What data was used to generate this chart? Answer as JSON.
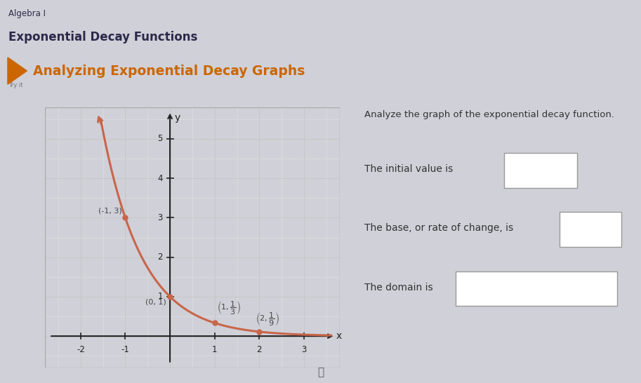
{
  "title_line1": "Algebra I",
  "title_line2": "Exponential Decay Functions",
  "section_title": "Analyzing Exponential Decay Graphs",
  "bg_color_header": "#d0d0d8",
  "bg_color_main": "#e8e8ec",
  "bg_color_section": "#e8e8ec",
  "curve_color": "#c8664a",
  "grid_color": "#c8c8c8",
  "grid_color_half": "#dedede",
  "axis_color": "#222222",
  "point_color": "#c8664a",
  "points": [
    [
      -1,
      3
    ],
    [
      0,
      1
    ],
    [
      1,
      0.3333
    ],
    [
      2,
      0.1111
    ]
  ],
  "xlim": [
    -2.8,
    3.8
  ],
  "ylim": [
    -0.8,
    5.8
  ],
  "xticks": [
    -2,
    -1,
    1,
    2,
    3
  ],
  "yticks": [
    1,
    2,
    3,
    4,
    5
  ],
  "analyze_text": "Analyze the graph of the exponential decay function.",
  "q1_text": "The initial value is",
  "q2_text": "The base, or rate of change, is",
  "q3_text": "The domain is",
  "title_color": "#2a2a4a",
  "section_color": "#cc6600",
  "graph_bg": "#ffffff",
  "icon_color": "#cc6600"
}
